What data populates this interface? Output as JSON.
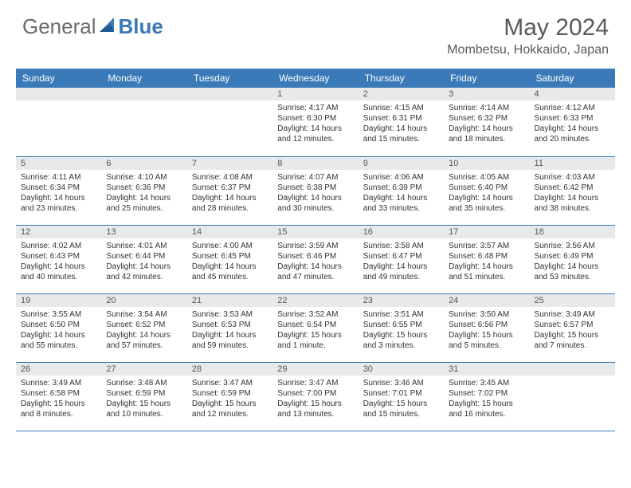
{
  "brand": {
    "part1": "General",
    "part2": "Blue"
  },
  "title": "May 2024",
  "location": "Mombetsu, Hokkaido, Japan",
  "daynames": [
    "Sunday",
    "Monday",
    "Tuesday",
    "Wednesday",
    "Thursday",
    "Friday",
    "Saturday"
  ],
  "colors": {
    "header_bg": "#3a7ab8",
    "header_text": "#ffffff",
    "daynum_bg": "#e7e9eb",
    "border": "#3a7ab8",
    "title_color": "#5a5a5a",
    "logo_gray": "#6b6b6b",
    "logo_blue": "#3a7ab8"
  },
  "weeks": [
    [
      {
        "n": "",
        "empty": true
      },
      {
        "n": "",
        "empty": true
      },
      {
        "n": "",
        "empty": true
      },
      {
        "n": "1",
        "sr": "4:17 AM",
        "ss": "6:30 PM",
        "dl": "14 hours and 12 minutes."
      },
      {
        "n": "2",
        "sr": "4:15 AM",
        "ss": "6:31 PM",
        "dl": "14 hours and 15 minutes."
      },
      {
        "n": "3",
        "sr": "4:14 AM",
        "ss": "6:32 PM",
        "dl": "14 hours and 18 minutes."
      },
      {
        "n": "4",
        "sr": "4:12 AM",
        "ss": "6:33 PM",
        "dl": "14 hours and 20 minutes."
      }
    ],
    [
      {
        "n": "5",
        "sr": "4:11 AM",
        "ss": "6:34 PM",
        "dl": "14 hours and 23 minutes."
      },
      {
        "n": "6",
        "sr": "4:10 AM",
        "ss": "6:36 PM",
        "dl": "14 hours and 25 minutes."
      },
      {
        "n": "7",
        "sr": "4:08 AM",
        "ss": "6:37 PM",
        "dl": "14 hours and 28 minutes."
      },
      {
        "n": "8",
        "sr": "4:07 AM",
        "ss": "6:38 PM",
        "dl": "14 hours and 30 minutes."
      },
      {
        "n": "9",
        "sr": "4:06 AM",
        "ss": "6:39 PM",
        "dl": "14 hours and 33 minutes."
      },
      {
        "n": "10",
        "sr": "4:05 AM",
        "ss": "6:40 PM",
        "dl": "14 hours and 35 minutes."
      },
      {
        "n": "11",
        "sr": "4:03 AM",
        "ss": "6:42 PM",
        "dl": "14 hours and 38 minutes."
      }
    ],
    [
      {
        "n": "12",
        "sr": "4:02 AM",
        "ss": "6:43 PM",
        "dl": "14 hours and 40 minutes."
      },
      {
        "n": "13",
        "sr": "4:01 AM",
        "ss": "6:44 PM",
        "dl": "14 hours and 42 minutes."
      },
      {
        "n": "14",
        "sr": "4:00 AM",
        "ss": "6:45 PM",
        "dl": "14 hours and 45 minutes."
      },
      {
        "n": "15",
        "sr": "3:59 AM",
        "ss": "6:46 PM",
        "dl": "14 hours and 47 minutes."
      },
      {
        "n": "16",
        "sr": "3:58 AM",
        "ss": "6:47 PM",
        "dl": "14 hours and 49 minutes."
      },
      {
        "n": "17",
        "sr": "3:57 AM",
        "ss": "6:48 PM",
        "dl": "14 hours and 51 minutes."
      },
      {
        "n": "18",
        "sr": "3:56 AM",
        "ss": "6:49 PM",
        "dl": "14 hours and 53 minutes."
      }
    ],
    [
      {
        "n": "19",
        "sr": "3:55 AM",
        "ss": "6:50 PM",
        "dl": "14 hours and 55 minutes."
      },
      {
        "n": "20",
        "sr": "3:54 AM",
        "ss": "6:52 PM",
        "dl": "14 hours and 57 minutes."
      },
      {
        "n": "21",
        "sr": "3:53 AM",
        "ss": "6:53 PM",
        "dl": "14 hours and 59 minutes."
      },
      {
        "n": "22",
        "sr": "3:52 AM",
        "ss": "6:54 PM",
        "dl": "15 hours and 1 minute."
      },
      {
        "n": "23",
        "sr": "3:51 AM",
        "ss": "6:55 PM",
        "dl": "15 hours and 3 minutes."
      },
      {
        "n": "24",
        "sr": "3:50 AM",
        "ss": "6:56 PM",
        "dl": "15 hours and 5 minutes."
      },
      {
        "n": "25",
        "sr": "3:49 AM",
        "ss": "6:57 PM",
        "dl": "15 hours and 7 minutes."
      }
    ],
    [
      {
        "n": "26",
        "sr": "3:49 AM",
        "ss": "6:58 PM",
        "dl": "15 hours and 8 minutes."
      },
      {
        "n": "27",
        "sr": "3:48 AM",
        "ss": "6:59 PM",
        "dl": "15 hours and 10 minutes."
      },
      {
        "n": "28",
        "sr": "3:47 AM",
        "ss": "6:59 PM",
        "dl": "15 hours and 12 minutes."
      },
      {
        "n": "29",
        "sr": "3:47 AM",
        "ss": "7:00 PM",
        "dl": "15 hours and 13 minutes."
      },
      {
        "n": "30",
        "sr": "3:46 AM",
        "ss": "7:01 PM",
        "dl": "15 hours and 15 minutes."
      },
      {
        "n": "31",
        "sr": "3:45 AM",
        "ss": "7:02 PM",
        "dl": "15 hours and 16 minutes."
      },
      {
        "n": "",
        "empty": true
      }
    ]
  ],
  "labels": {
    "sunrise": "Sunrise:",
    "sunset": "Sunset:",
    "daylight": "Daylight:"
  }
}
